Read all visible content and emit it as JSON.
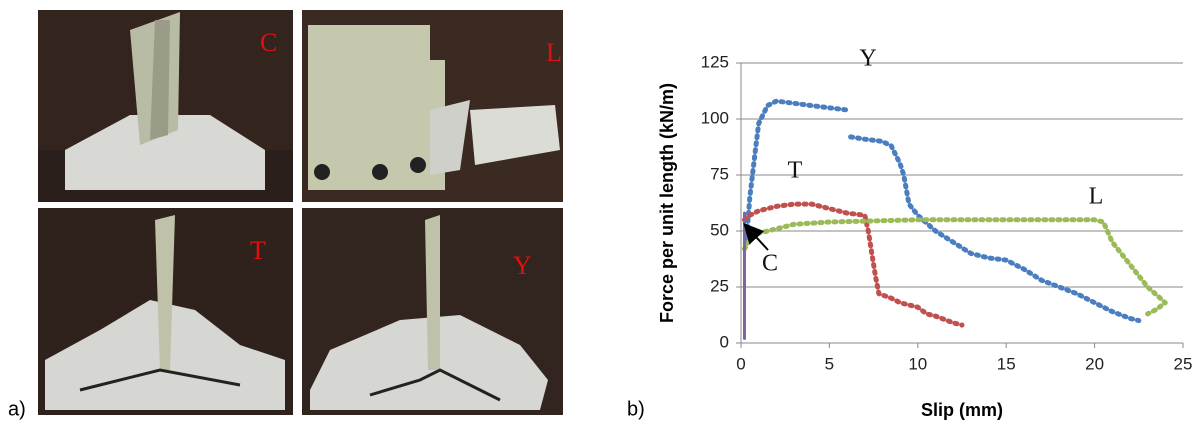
{
  "panel_labels": [
    "a)",
    "b)"
  ],
  "photos": [
    "C",
    "L",
    "T",
    "Y"
  ],
  "chart_data": {
    "type": "line",
    "x_label": "Slip (mm)",
    "y_label": "Force per unit length (kN/m)",
    "xlim": [
      0,
      25
    ],
    "xticks": [
      0,
      5,
      10,
      15,
      20,
      25
    ],
    "ylim": [
      0,
      125
    ],
    "yticks": [
      0,
      25,
      50,
      75,
      100,
      125
    ],
    "grid": true,
    "series": [
      {
        "name": "Y",
        "color": "#4a7ebf",
        "x": [
          0.3,
          0.5,
          0.8,
          1.0,
          1.5,
          2,
          3,
          4,
          5,
          6,
          6.1,
          6.2,
          7,
          8,
          8.5,
          9,
          9.2,
          9.5,
          10,
          11,
          12,
          13,
          14,
          15,
          16,
          17,
          18,
          19,
          20,
          21,
          22,
          22.5
        ],
        "values": [
          45,
          65,
          85,
          98,
          106,
          108,
          107,
          106,
          105,
          104,
          null,
          92,
          91,
          90,
          88,
          80,
          75,
          62,
          57,
          50,
          45,
          40,
          38,
          37,
          33,
          28,
          25,
          22,
          18,
          14,
          11,
          10
        ]
      },
      {
        "name": "T",
        "color": "#c0504d",
        "x": [
          0.2,
          0.5,
          1,
          2,
          3,
          4,
          5,
          6,
          7,
          7.2,
          7.4,
          7.6,
          7.8,
          8.5,
          9,
          10,
          10.5,
          11,
          12,
          12.5
        ],
        "values": [
          55,
          57,
          59,
          61,
          62,
          62,
          60,
          58,
          57,
          50,
          40,
          30,
          22,
          20,
          18,
          16,
          13,
          12,
          9,
          8
        ]
      },
      {
        "name": "L",
        "color": "#9bbb59",
        "x": [
          0.2,
          0.5,
          1,
          2,
          3,
          5,
          10,
          15,
          20,
          20.5,
          21,
          22,
          23,
          24,
          23.5,
          23
        ],
        "values": [
          42,
          46,
          49,
          51,
          53,
          54,
          55,
          55,
          55,
          54,
          45,
          35,
          25,
          18,
          15,
          13
        ]
      },
      {
        "name": "C",
        "color": "#8064a2",
        "x": [
          0.2,
          0.2
        ],
        "values": [
          2,
          58
        ]
      }
    ]
  }
}
